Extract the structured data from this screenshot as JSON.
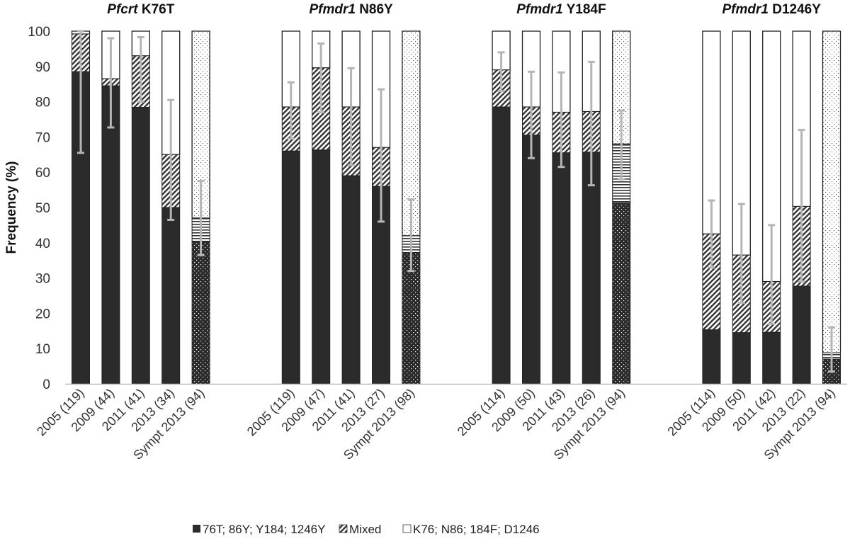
{
  "chart_data": {
    "type": "bar",
    "stacked": true,
    "ylabel": "Frequency (%)",
    "ylim": [
      0,
      100
    ],
    "yticks": [
      "0",
      "10",
      "20",
      "30",
      "40",
      "50",
      "60",
      "70",
      "80",
      "90",
      "100"
    ],
    "grid": false,
    "legend_placement": "bottom",
    "legend": [
      "76T; 86Y; Y184; 1246Y",
      "Mixed",
      "K76; N86; 184F; D1246"
    ],
    "panels": [
      {
        "gene": "Pfcrt",
        "mutation": "K76T",
        "categories": [
          "2005 (119)",
          "2009 (44)",
          "2011 (41)",
          "2013 (34)",
          "Sympt 2013 (94)"
        ],
        "mutant": [
          88.5,
          84.5,
          78.4,
          50.0,
          40.4
        ],
        "mixed": [
          10.7,
          2.0,
          14.6,
          15.0,
          6.6
        ],
        "wildtype": [
          0.8,
          13.5,
          7.0,
          35.0,
          53.0
        ],
        "error_low": [
          65.5,
          72.7,
          80.0,
          46.5,
          36.5
        ],
        "error_high": [
          100.0,
          98.0,
          98.3,
          80.5,
          57.5
        ]
      },
      {
        "gene": "Pfmdr1",
        "mutation": "N86Y",
        "categories": [
          "2005 (119)",
          "2009 (47)",
          "2011 (41)",
          "2013 (27)",
          "Sympt 2013 (98)"
        ],
        "mutant": [
          66.0,
          66.3,
          59.0,
          56.0,
          37.2
        ],
        "mixed": [
          12.5,
          23.3,
          19.5,
          11.0,
          4.8
        ],
        "wildtype": [
          21.5,
          10.4,
          21.5,
          33.0,
          58.0
        ],
        "error_low": [
          69.5,
          77.0,
          62.0,
          46.0,
          32.0
        ],
        "error_high": [
          85.5,
          96.5,
          89.5,
          83.5,
          52.3
        ]
      },
      {
        "gene": "Pfmdr1",
        "mutation": "Y184F",
        "categories": [
          "2005 (114)",
          "2009 (50)",
          "2011 (43)",
          "2013 (26)",
          "Sympt 2013 (94)"
        ],
        "mutant": [
          78.5,
          70.5,
          65.5,
          65.7,
          51.3
        ],
        "mixed": [
          10.5,
          8.0,
          11.5,
          11.5,
          16.7
        ],
        "wildtype": [
          11.0,
          21.5,
          23.0,
          22.8,
          32.0
        ],
        "error_low": [
          83.0,
          64.0,
          61.5,
          56.3,
          58.0
        ],
        "error_high": [
          94.0,
          88.5,
          88.3,
          91.3,
          77.5
        ]
      },
      {
        "gene": "Pfmdr1",
        "mutation": "D1246Y",
        "categories": [
          "2005 (114)",
          "2009 (50)",
          "2011 (42)",
          "2013 (22)",
          "Sympt 2013 (94)"
        ],
        "mutant": [
          15.3,
          14.5,
          14.6,
          27.7,
          7.0
        ],
        "mixed": [
          27.2,
          22.0,
          14.4,
          22.6,
          1.8
        ],
        "wildtype": [
          57.5,
          63.5,
          71.0,
          49.7,
          91.2
        ],
        "error_low": [
          33.0,
          23.0,
          17.0,
          29.0,
          3.5
        ],
        "error_high": [
          52.0,
          51.0,
          45.0,
          72.0,
          16.0
        ]
      }
    ]
  }
}
